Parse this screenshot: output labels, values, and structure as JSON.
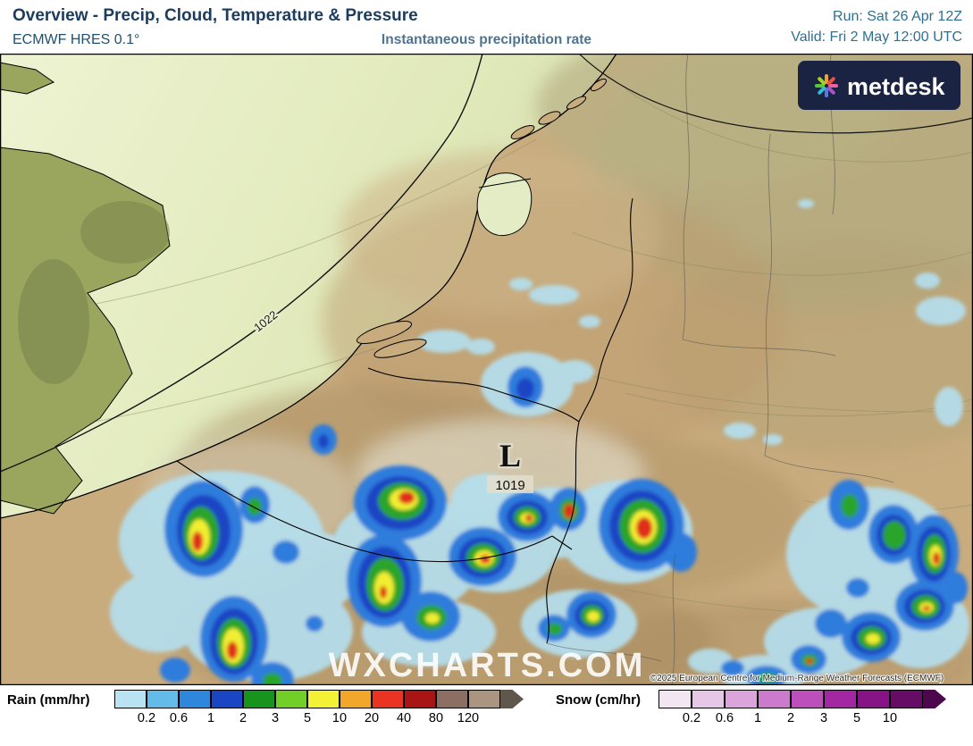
{
  "header": {
    "title": "Overview - Precip, Cloud, Temperature & Pressure",
    "model": "ECMWF HRES 0.1°",
    "subtitle": "Instantaneous precipitation rate",
    "run_label": "Run: Sat 26 Apr 12Z",
    "valid_label": "Valid: Fri 2 May 12:00 UTC"
  },
  "branding": {
    "logo_text": "metdesk",
    "logo_bg_color": "#1b2342",
    "watermark": "WXCHARTS.COM",
    "copyright": "©2025 European Centre for Medium-Range Weather Forecasts (ECMWF)"
  },
  "map_labels": {
    "isobar": "1022",
    "low_symbol": "L",
    "low_pressure": "1019"
  },
  "legend": {
    "rain": {
      "label": "Rain (mm/hr)",
      "ticks": [
        "0.2",
        "0.6",
        "1",
        "2",
        "3",
        "5",
        "10",
        "20",
        "40",
        "80",
        "120"
      ],
      "colors": [
        "#b9e3f3",
        "#63bbe9",
        "#2e87dd",
        "#1b46c3",
        "#16941d",
        "#71cf27",
        "#f3f135",
        "#f2a72b",
        "#e93323",
        "#a91414",
        "#8c6f62",
        "#ab9480"
      ],
      "arrow_color": "#5f564c"
    },
    "snow": {
      "label": "Snow (cm/hr)",
      "ticks": [
        "0.2",
        "0.6",
        "1",
        "2",
        "3",
        "5",
        "10"
      ],
      "colors": [
        "#f3e6f3",
        "#e7c7e7",
        "#dba4db",
        "#cc7acc",
        "#bc4fbc",
        "#a326a3",
        "#861486",
        "#660b66"
      ],
      "arrow_color": "#4d084d"
    }
  }
}
